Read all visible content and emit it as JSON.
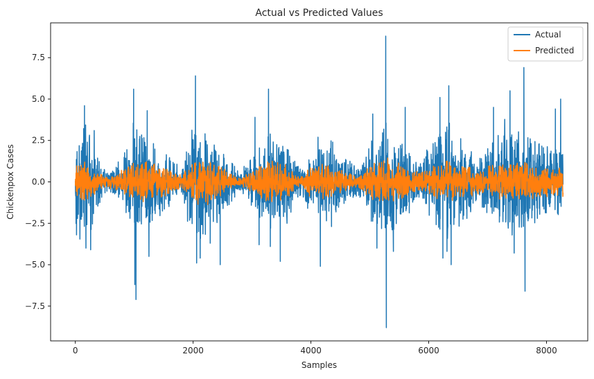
{
  "chart_data": {
    "type": "line",
    "title": "Actual vs Predicted Values",
    "xlabel": "Samples",
    "ylabel": "Chickenpox Cases",
    "xlim": [
      -420,
      8700
    ],
    "ylim": [
      -9.6,
      9.6
    ],
    "xticks": [
      0,
      2000,
      4000,
      6000,
      8000
    ],
    "xtick_labels": [
      "0",
      "2000",
      "4000",
      "6000",
      "8000"
    ],
    "yticks": [
      -7.5,
      -5.0,
      -2.5,
      0.0,
      2.5,
      5.0,
      7.5
    ],
    "ytick_labels": [
      "−7.5",
      "−5.0",
      "−2.5",
      "0.0",
      "2.5",
      "5.0",
      "7.5"
    ],
    "grid": false,
    "legend_position": "top-right",
    "sample_count": 8280,
    "series": [
      {
        "name": "Actual",
        "color": "#1f77b4",
        "envelope_x": [
          0,
          150,
          350,
          550,
          800,
          1000,
          1200,
          1500,
          1800,
          2050,
          2300,
          2550,
          2800,
          3050,
          3300,
          3550,
          3800,
          4000,
          4250,
          4500,
          4800,
          5050,
          5300,
          5550,
          5800,
          6050,
          6300,
          6550,
          6800,
          7050,
          7300,
          7600,
          7900,
          8280
        ],
        "envelope_amplitude": [
          2.6,
          3.8,
          1.8,
          0.5,
          1.5,
          3.4,
          2.6,
          1.8,
          0.8,
          3.9,
          2.8,
          1.6,
          0.6,
          1.8,
          3.0,
          2.4,
          0.8,
          1.8,
          2.4,
          1.6,
          0.9,
          2.6,
          3.4,
          2.6,
          1.2,
          2.2,
          3.6,
          2.8,
          1.3,
          2.2,
          3.4,
          3.1,
          2.2,
          2.0
        ],
        "extremes": [
          {
            "x": 20,
            "y": -3.2
          },
          {
            "x": 155,
            "y": 4.6
          },
          {
            "x": 180,
            "y": -4.0
          },
          {
            "x": 260,
            "y": -4.1
          },
          {
            "x": 320,
            "y": 3.1
          },
          {
            "x": 990,
            "y": 5.6
          },
          {
            "x": 1010,
            "y": -6.2
          },
          {
            "x": 1030,
            "y": -7.1
          },
          {
            "x": 1220,
            "y": 4.3
          },
          {
            "x": 1250,
            "y": -4.5
          },
          {
            "x": 2040,
            "y": 6.4
          },
          {
            "x": 2060,
            "y": -4.9
          },
          {
            "x": 2120,
            "y": -4.6
          },
          {
            "x": 2290,
            "y": -3.7
          },
          {
            "x": 2460,
            "y": -5.0
          },
          {
            "x": 3050,
            "y": 3.9
          },
          {
            "x": 3120,
            "y": -3.8
          },
          {
            "x": 3280,
            "y": 5.6
          },
          {
            "x": 3310,
            "y": -3.9
          },
          {
            "x": 3480,
            "y": -4.8
          },
          {
            "x": 4120,
            "y": 2.7
          },
          {
            "x": 4160,
            "y": -5.1
          },
          {
            "x": 4350,
            "y": -2.7
          },
          {
            "x": 4370,
            "y": 2.4
          },
          {
            "x": 5050,
            "y": 4.1
          },
          {
            "x": 5120,
            "y": -4.0
          },
          {
            "x": 5270,
            "y": 8.8
          },
          {
            "x": 5280,
            "y": -8.8
          },
          {
            "x": 5400,
            "y": -4.2
          },
          {
            "x": 5600,
            "y": 4.5
          },
          {
            "x": 6190,
            "y": 5.1
          },
          {
            "x": 6240,
            "y": -4.6
          },
          {
            "x": 6310,
            "y": -4.2
          },
          {
            "x": 6340,
            "y": 5.8
          },
          {
            "x": 6380,
            "y": -5.0
          },
          {
            "x": 7100,
            "y": 4.5
          },
          {
            "x": 7380,
            "y": 5.5
          },
          {
            "x": 7450,
            "y": -4.3
          },
          {
            "x": 7615,
            "y": 6.9
          },
          {
            "x": 7635,
            "y": -6.6
          },
          {
            "x": 8150,
            "y": 4.4
          },
          {
            "x": 8240,
            "y": 5.0
          }
        ]
      },
      {
        "name": "Predicted",
        "color": "#ff7f0e",
        "envelope_x": [
          0,
          150,
          350,
          550,
          800,
          1000,
          1200,
          1500,
          1800,
          2050,
          2300,
          2550,
          2800,
          3050,
          3300,
          3550,
          3800,
          4000,
          4250,
          4500,
          4800,
          5050,
          5300,
          5550,
          5800,
          6050,
          6300,
          6550,
          6800,
          7050,
          7300,
          7600,
          7900,
          8280
        ],
        "envelope_amplitude": [
          1.1,
          1.2,
          0.7,
          0.3,
          0.7,
          1.1,
          1.2,
          0.9,
          0.4,
          1.4,
          1.2,
          0.8,
          0.2,
          0.9,
          1.3,
          1.1,
          0.3,
          0.9,
          1.1,
          0.7,
          0.3,
          1.1,
          1.3,
          1.1,
          0.6,
          0.9,
          1.3,
          1.1,
          0.8,
          1.0,
          1.1,
          1.2,
          1.0,
          0.9
        ],
        "extremes": []
      }
    ]
  }
}
